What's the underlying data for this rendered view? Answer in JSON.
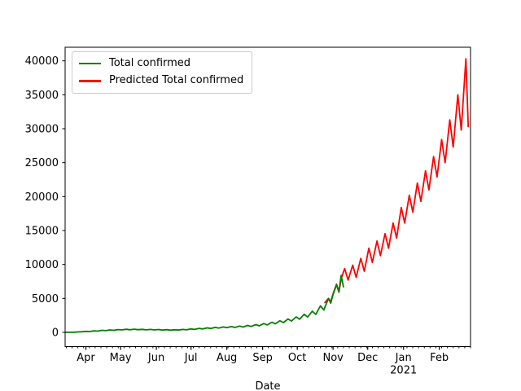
{
  "figure": {
    "background": "#ffffff",
    "spine_color": "#000000",
    "tick_color": "#000000"
  },
  "chart_data": {
    "type": "line",
    "xlabel": "Date",
    "ylabel": "",
    "grid": false,
    "legend_position": "upper left",
    "x_axis": {
      "unit": "days (day 0 = mid-March 2020)",
      "xlim": [
        -1,
        350
      ],
      "major_ticks": [
        {
          "label": "Apr",
          "day": 17
        },
        {
          "label": "May",
          "day": 47
        },
        {
          "label": "Jun",
          "day": 78
        },
        {
          "label": "Jul",
          "day": 108
        },
        {
          "label": "Aug",
          "day": 139
        },
        {
          "label": "Sep",
          "day": 170
        },
        {
          "label": "Oct",
          "day": 200
        },
        {
          "label": "Nov",
          "day": 231
        },
        {
          "label": "Dec",
          "day": 261
        },
        {
          "label": "Jan",
          "day": 292
        },
        {
          "label": "Feb",
          "day": 323
        }
      ],
      "year_label": {
        "label": "2021",
        "day": 292
      },
      "minor_tick_interval_days": 5
    },
    "y_axis": {
      "ylim": [
        -2100,
        42000
      ],
      "ticks": [
        0,
        5000,
        10000,
        15000,
        20000,
        25000,
        30000,
        35000,
        40000
      ]
    },
    "series": [
      {
        "name": "Total confirmed",
        "color": "#008000",
        "points": [
          [
            -1,
            5
          ],
          [
            3,
            12
          ],
          [
            7,
            30
          ],
          [
            10,
            55
          ],
          [
            14,
            95
          ],
          [
            17,
            150
          ],
          [
            20,
            125
          ],
          [
            24,
            215
          ],
          [
            27,
            185
          ],
          [
            31,
            295
          ],
          [
            34,
            255
          ],
          [
            38,
            355
          ],
          [
            41,
            305
          ],
          [
            45,
            405
          ],
          [
            48,
            355
          ],
          [
            52,
            455
          ],
          [
            55,
            385
          ],
          [
            59,
            465
          ],
          [
            62,
            395
          ],
          [
            66,
            450
          ],
          [
            69,
            375
          ],
          [
            73,
            435
          ],
          [
            76,
            355
          ],
          [
            80,
            415
          ],
          [
            83,
            335
          ],
          [
            87,
            395
          ],
          [
            90,
            325
          ],
          [
            94,
            385
          ],
          [
            97,
            335
          ],
          [
            101,
            435
          ],
          [
            104,
            375
          ],
          [
            108,
            505
          ],
          [
            111,
            435
          ],
          [
            115,
            585
          ],
          [
            118,
            505
          ],
          [
            122,
            665
          ],
          [
            125,
            575
          ],
          [
            129,
            735
          ],
          [
            132,
            635
          ],
          [
            136,
            795
          ],
          [
            139,
            685
          ],
          [
            143,
            855
          ],
          [
            146,
            725
          ],
          [
            150,
            925
          ],
          [
            153,
            785
          ],
          [
            157,
            1015
          ],
          [
            160,
            865
          ],
          [
            164,
            1135
          ],
          [
            167,
            965
          ],
          [
            171,
            1295
          ],
          [
            174,
            1095
          ],
          [
            178,
            1485
          ],
          [
            181,
            1255
          ],
          [
            185,
            1705
          ],
          [
            188,
            1445
          ],
          [
            192,
            1965
          ],
          [
            195,
            1665
          ],
          [
            199,
            2285
          ],
          [
            202,
            1935
          ],
          [
            206,
            2665
          ],
          [
            209,
            2255
          ],
          [
            213,
            3125
          ],
          [
            216,
            2645
          ],
          [
            220,
            3905
          ],
          [
            223,
            3305
          ],
          [
            227,
            5000
          ],
          [
            229,
            4300
          ],
          [
            231,
            5600
          ],
          [
            234,
            7000
          ],
          [
            236,
            6000
          ],
          [
            238,
            8400
          ],
          [
            240,
            6700
          ]
        ]
      },
      {
        "name": "Predicted Total confirmed",
        "color": "#ff0000",
        "points": [
          [
            224,
            4400
          ],
          [
            227,
            5000
          ],
          [
            229,
            4500
          ],
          [
            231,
            5700
          ],
          [
            234,
            7100
          ],
          [
            236,
            5900
          ],
          [
            238,
            7900
          ],
          [
            241,
            9400
          ],
          [
            244,
            7700
          ],
          [
            248,
            9900
          ],
          [
            251,
            8100
          ],
          [
            255,
            10900
          ],
          [
            258,
            9000
          ],
          [
            262,
            12400
          ],
          [
            265,
            10300
          ],
          [
            269,
            13450
          ],
          [
            272,
            11300
          ],
          [
            276,
            14550
          ],
          [
            279,
            12400
          ],
          [
            283,
            16100
          ],
          [
            286,
            13900
          ],
          [
            290,
            18400
          ],
          [
            293,
            16100
          ],
          [
            297,
            20200
          ],
          [
            300,
            17700
          ],
          [
            304,
            22000
          ],
          [
            307,
            19300
          ],
          [
            311,
            23800
          ],
          [
            314,
            21000
          ],
          [
            318,
            25900
          ],
          [
            321,
            22900
          ],
          [
            325,
            28400
          ],
          [
            328,
            25000
          ],
          [
            332,
            31300
          ],
          [
            335,
            27300
          ],
          [
            339,
            35000
          ],
          [
            342,
            29800
          ],
          [
            346,
            40300
          ],
          [
            348,
            30300
          ]
        ]
      }
    ]
  }
}
